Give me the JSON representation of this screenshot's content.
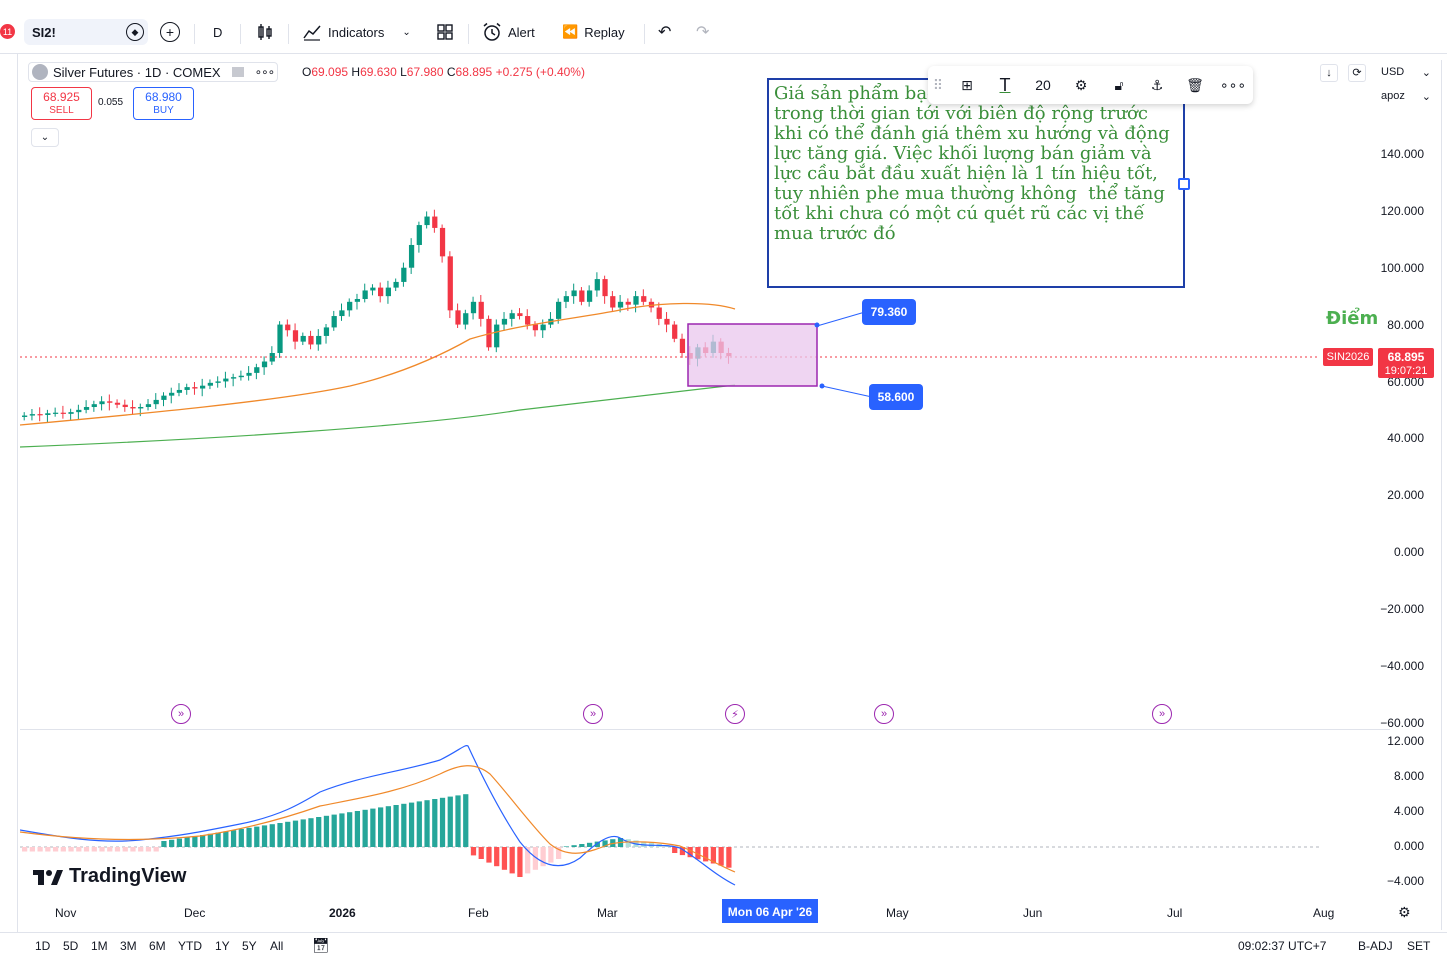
{
  "toolbar": {
    "notification_count": "11",
    "symbol": "SI2!",
    "interval": "D",
    "indicators_label": "Indicators",
    "alert_label": "Alert",
    "replay_label": "Replay"
  },
  "legend": {
    "title": "Silver Futures · 1D · COMEX",
    "open": "69.095",
    "high": "69.630",
    "low": "67.980",
    "close": "68.895",
    "change": "+0.275 (+0.40%)",
    "open_prefix": "O",
    "high_prefix": "H",
    "low_prefix": "L",
    "close_prefix": "C",
    "sell_price": "68.925",
    "sell_label": "SELL",
    "spread": "0.055",
    "buy_price": "68.980",
    "buy_label": "BUY"
  },
  "note": {
    "text": "Giá sản phẩm bạc sẽ còn thử thách thêm trong thời gian tới với biên độ rộng trước khi có thể đánh giá thêm xu hướng và động lực tăng giá. Việc khối lượng bán giảm và lực cầu bắt đầu xuất hiện là 1 tín hiệu tốt, tuy nhiên phe mua thường không  thể tăng tốt khi chưa có một cú quét rũ các vị thế mua trước đó",
    "font_size": "20"
  },
  "label_diem": "Điểm",
  "range": {
    "top": "79.360",
    "bottom": "58.600"
  },
  "price_scale": {
    "currency": "USD",
    "unit": "apoz",
    "ticks": [
      "140.000",
      "120.000",
      "100.000",
      "80.000",
      "60.000",
      "40.000",
      "20.000",
      "0.000",
      "−20.000",
      "−40.000",
      "−60.000"
    ],
    "symbol_tag": "SIN2026",
    "last_price": "68.895",
    "countdown": "19:07:21"
  },
  "macd_scale": {
    "ticks": [
      "12.000",
      "8.000",
      "4.000",
      "0.000",
      "−4.000"
    ]
  },
  "time_axis": {
    "labels": [
      "Nov",
      "Dec",
      "2026",
      "Feb",
      "Mar",
      "May",
      "Jun",
      "Jul",
      "Aug"
    ],
    "highlight": "Mon 06 Apr '26"
  },
  "bottom_bar": {
    "ranges": [
      "1D",
      "5D",
      "1M",
      "3M",
      "6M",
      "YTD",
      "1Y",
      "5Y",
      "All"
    ],
    "time": "09:02:37 UTC+7",
    "badj": "B-ADJ",
    "session": "SET"
  },
  "brand": "TradingView",
  "colors": {
    "up": "#089981",
    "down": "#f23645",
    "ma_fast": "#f0892a",
    "ma_slow": "#4caf50",
    "range_fill": "#e1bee7",
    "range_border": "#9c27b0",
    "note_text": "#3a8f3a",
    "accent": "#2962ff"
  },
  "chart_data": {
    "type": "candlestick",
    "note": "Daily silver futures candles with moving averages and MACD subpanel",
    "series": [
      {
        "name": "price",
        "close": [
          48,
          48.5,
          48.2,
          48.8,
          49,
          48.6,
          49.2,
          50,
          51,
          52,
          53,
          52.5,
          51.8,
          51,
          50.5,
          51,
          52,
          53.5,
          55,
          56,
          57,
          58,
          57.5,
          58.5,
          59.5,
          60,
          61,
          61.5,
          62,
          63,
          65,
          67,
          70,
          80,
          78,
          74,
          76,
          73,
          76,
          79,
          83,
          85,
          88,
          89,
          92,
          93,
          90,
          93,
          95,
          100,
          108,
          115,
          118,
          114,
          104,
          85,
          80,
          84,
          88,
          82,
          72,
          80,
          82,
          84,
          83,
          80,
          78,
          80,
          82,
          88,
          90,
          92,
          88,
          92,
          96,
          90,
          86,
          88,
          87,
          90,
          88,
          86,
          82,
          80,
          75,
          70,
          68,
          72,
          70,
          74,
          70,
          68.895
        ]
      }
    ]
  }
}
